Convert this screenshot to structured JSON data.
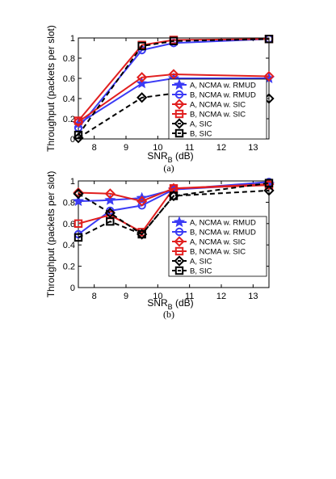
{
  "chart_data": [
    {
      "type": "line",
      "caption": "(a)",
      "xlabel": "SNR",
      "xlabel_sub": "B",
      "xlabel_unit": "(dB)",
      "ylabel": "Throughput (packets per slot)",
      "xlim": [
        7.5,
        13.5
      ],
      "ylim": [
        0,
        1
      ],
      "xticks": [
        8,
        9,
        10,
        11,
        12,
        13
      ],
      "yticks": [
        0,
        0.2,
        0.4,
        0.6,
        0.8,
        1
      ],
      "grid": false,
      "legend_position": "lower-right",
      "x": [
        7.5,
        9.5,
        10.5,
        13.5
      ],
      "series": [
        {
          "name": "A, NCMA w. RMUD",
          "values": [
            0.15,
            0.55,
            0.6,
            0.6
          ],
          "color": "#3b3bf5",
          "marker": "star",
          "dash": "solid"
        },
        {
          "name": "B, NCMA w. RMUD",
          "values": [
            0.11,
            0.88,
            0.95,
            0.99
          ],
          "color": "#3b3bf5",
          "marker": "circle",
          "dash": "solid"
        },
        {
          "name": "A, NCMA w. SIC",
          "values": [
            0.17,
            0.61,
            0.64,
            0.62
          ],
          "color": "#e11f1f",
          "marker": "diamond",
          "dash": "solid"
        },
        {
          "name": "B, NCMA w. SIC",
          "values": [
            0.18,
            0.93,
            0.98,
            0.99
          ],
          "color": "#e11f1f",
          "marker": "square",
          "dash": "solid"
        },
        {
          "name": "A, SIC",
          "values": [
            0.01,
            0.41,
            0.45,
            0.4
          ],
          "color": "#000000",
          "marker": "diamond",
          "dash": "dashed",
          "line_to_last": false
        },
        {
          "name": "B, SIC",
          "values": [
            0.04,
            0.92,
            0.97,
            0.99
          ],
          "color": "#000000",
          "marker": "square",
          "dash": "dashed"
        }
      ]
    },
    {
      "type": "line",
      "caption": "(b)",
      "xlabel": "SNR",
      "xlabel_sub": "B",
      "xlabel_unit": "(dB)",
      "ylabel": "Throughput (packets per slot)",
      "xlim": [
        7.5,
        13.5
      ],
      "ylim": [
        0,
        1
      ],
      "xticks": [
        8,
        9,
        10,
        11,
        12,
        13
      ],
      "yticks": [
        0,
        0.2,
        0.4,
        0.6,
        0.8,
        1
      ],
      "grid": false,
      "legend_position": "lower-right",
      "x": [
        7.5,
        8.5,
        9.5,
        10.5,
        13.5
      ],
      "series": [
        {
          "name": "A, NCMA w. RMUD",
          "values": [
            0.81,
            0.82,
            0.84,
            0.92,
            0.97
          ],
          "color": "#3b3bf5",
          "marker": "star",
          "dash": "solid"
        },
        {
          "name": "B, NCMA w. RMUD",
          "values": [
            0.5,
            0.72,
            0.77,
            0.92,
            0.99
          ],
          "color": "#3b3bf5",
          "marker": "circle",
          "dash": "solid"
        },
        {
          "name": "A, NCMA w. SIC",
          "values": [
            0.89,
            0.88,
            0.81,
            0.93,
            0.97
          ],
          "color": "#e11f1f",
          "marker": "diamond",
          "dash": "solid"
        },
        {
          "name": "B, NCMA w. SIC",
          "values": [
            0.6,
            0.68,
            0.52,
            0.93,
            0.96
          ],
          "color": "#e11f1f",
          "marker": "square",
          "dash": "solid"
        },
        {
          "name": "A, SIC",
          "values": [
            0.88,
            0.7,
            0.5,
            0.86,
            0.91
          ],
          "color": "#000000",
          "marker": "diamond",
          "dash": "dashed"
        },
        {
          "name": "B, SIC",
          "values": [
            0.47,
            0.62,
            0.5,
            0.86,
            0.98
          ],
          "color": "#000000",
          "marker": "square",
          "dash": "dashed"
        }
      ]
    }
  ]
}
